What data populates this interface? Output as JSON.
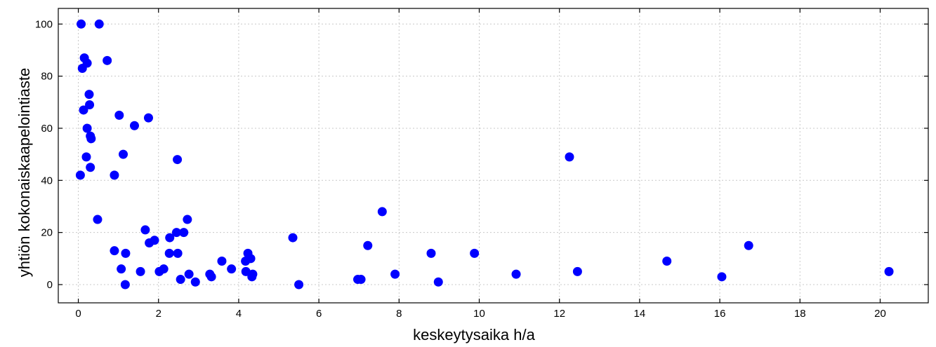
{
  "chart_data": {
    "type": "scatter",
    "xlabel": "keskeytysaika h/a",
    "ylabel": "yhtiön kokonaiskaapelointiaste",
    "xlim": [
      -0.5,
      21.2
    ],
    "ylim": [
      -7,
      106
    ],
    "xticks": [
      0,
      2,
      4,
      6,
      8,
      10,
      12,
      14,
      16,
      18,
      20
    ],
    "yticks": [
      0,
      20,
      40,
      60,
      80,
      100
    ],
    "grid": true,
    "marker_color": "#0000ff",
    "points": [
      {
        "x": 0.07,
        "y": 100
      },
      {
        "x": 0.52,
        "y": 100
      },
      {
        "x": 0.15,
        "y": 87
      },
      {
        "x": 0.22,
        "y": 85
      },
      {
        "x": 0.72,
        "y": 86
      },
      {
        "x": 0.1,
        "y": 83
      },
      {
        "x": 0.27,
        "y": 73
      },
      {
        "x": 0.28,
        "y": 69
      },
      {
        "x": 0.13,
        "y": 67
      },
      {
        "x": 1.02,
        "y": 65
      },
      {
        "x": 1.75,
        "y": 64
      },
      {
        "x": 1.4,
        "y": 61
      },
      {
        "x": 0.22,
        "y": 60
      },
      {
        "x": 0.3,
        "y": 57
      },
      {
        "x": 0.32,
        "y": 56
      },
      {
        "x": 1.12,
        "y": 50
      },
      {
        "x": 0.2,
        "y": 49
      },
      {
        "x": 2.47,
        "y": 48
      },
      {
        "x": 12.25,
        "y": 49
      },
      {
        "x": 0.3,
        "y": 45
      },
      {
        "x": 0.05,
        "y": 42
      },
      {
        "x": 0.9,
        "y": 42
      },
      {
        "x": 7.58,
        "y": 28
      },
      {
        "x": 0.48,
        "y": 25
      },
      {
        "x": 2.72,
        "y": 25
      },
      {
        "x": 1.67,
        "y": 21
      },
      {
        "x": 2.45,
        "y": 20
      },
      {
        "x": 2.63,
        "y": 20
      },
      {
        "x": 2.28,
        "y": 18
      },
      {
        "x": 5.35,
        "y": 18
      },
      {
        "x": 1.9,
        "y": 17
      },
      {
        "x": 1.77,
        "y": 16
      },
      {
        "x": 7.22,
        "y": 15
      },
      {
        "x": 16.72,
        "y": 15
      },
      {
        "x": 0.9,
        "y": 13
      },
      {
        "x": 1.18,
        "y": 12
      },
      {
        "x": 2.27,
        "y": 12
      },
      {
        "x": 2.48,
        "y": 12
      },
      {
        "x": 4.23,
        "y": 12
      },
      {
        "x": 8.8,
        "y": 12
      },
      {
        "x": 9.88,
        "y": 12
      },
      {
        "x": 4.3,
        "y": 10
      },
      {
        "x": 3.58,
        "y": 9
      },
      {
        "x": 4.17,
        "y": 9
      },
      {
        "x": 14.68,
        "y": 9
      },
      {
        "x": 1.07,
        "y": 6
      },
      {
        "x": 2.13,
        "y": 6
      },
      {
        "x": 3.82,
        "y": 6
      },
      {
        "x": 1.55,
        "y": 5
      },
      {
        "x": 2.02,
        "y": 5
      },
      {
        "x": 4.18,
        "y": 5
      },
      {
        "x": 12.45,
        "y": 5
      },
      {
        "x": 20.22,
        "y": 5
      },
      {
        "x": 2.76,
        "y": 4
      },
      {
        "x": 3.28,
        "y": 4
      },
      {
        "x": 4.35,
        "y": 4
      },
      {
        "x": 7.9,
        "y": 4
      },
      {
        "x": 10.92,
        "y": 4
      },
      {
        "x": 3.32,
        "y": 3
      },
      {
        "x": 4.33,
        "y": 3
      },
      {
        "x": 16.05,
        "y": 3
      },
      {
        "x": 2.55,
        "y": 2
      },
      {
        "x": 6.97,
        "y": 2
      },
      {
        "x": 7.05,
        "y": 2
      },
      {
        "x": 2.92,
        "y": 1
      },
      {
        "x": 8.98,
        "y": 1
      },
      {
        "x": 1.17,
        "y": 0
      },
      {
        "x": 5.5,
        "y": 0
      }
    ]
  }
}
